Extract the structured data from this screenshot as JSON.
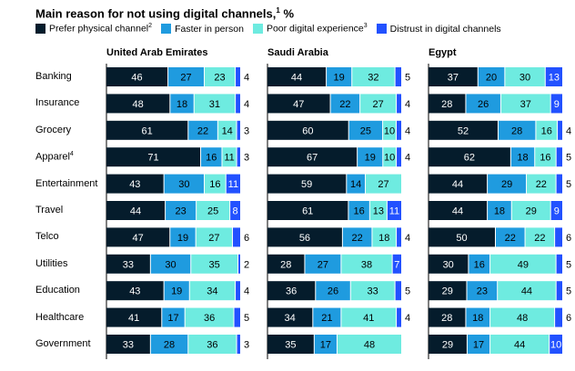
{
  "title": "Main reason for not using digital channels,",
  "title_note": "1",
  "title_suffix": " %",
  "colors": {
    "prefer_physical": "#051c2c",
    "faster_in_person": "#1f9bdf",
    "poor_digital": "#6eebe0",
    "distrust": "#2251ff"
  },
  "chart_data": {
    "type": "bar",
    "stacked": true,
    "orientation": "horizontal",
    "legend": [
      {
        "key": "prefer_physical",
        "label": "Prefer physical channel",
        "note": "2"
      },
      {
        "key": "faster_in_person",
        "label": "Faster in person",
        "note": ""
      },
      {
        "key": "poor_digital",
        "label": "Poor digital experience",
        "note": "3"
      },
      {
        "key": "distrust",
        "label": "Distrust in digital channels",
        "note": ""
      }
    ],
    "categories": [
      {
        "label": "Banking",
        "note": ""
      },
      {
        "label": "Insurance",
        "note": ""
      },
      {
        "label": "Grocery",
        "note": ""
      },
      {
        "label": "Apparel",
        "note": "4"
      },
      {
        "label": "Entertainment",
        "note": ""
      },
      {
        "label": "Travel",
        "note": ""
      },
      {
        "label": "Telco",
        "note": ""
      },
      {
        "label": "Utilities",
        "note": ""
      },
      {
        "label": "Education",
        "note": ""
      },
      {
        "label": "Healthcare",
        "note": ""
      },
      {
        "label": "Government",
        "note": ""
      }
    ],
    "panels": [
      {
        "name": "United Arab Emirates",
        "values": [
          [
            46,
            27,
            23,
            4
          ],
          [
            48,
            18,
            31,
            4
          ],
          [
            61,
            22,
            14,
            3
          ],
          [
            71,
            16,
            11,
            3
          ],
          [
            43,
            30,
            16,
            11
          ],
          [
            44,
            23,
            25,
            8
          ],
          [
            47,
            19,
            27,
            6
          ],
          [
            33,
            30,
            35,
            2
          ],
          [
            43,
            19,
            34,
            4
          ],
          [
            41,
            17,
            36,
            5
          ],
          [
            33,
            28,
            36,
            3
          ]
        ]
      },
      {
        "name": "Saudi Arabia",
        "values": [
          [
            44,
            19,
            32,
            5
          ],
          [
            47,
            22,
            27,
            4
          ],
          [
            60,
            25,
            10,
            4
          ],
          [
            67,
            19,
            10,
            4
          ],
          [
            59,
            14,
            27,
            0
          ],
          [
            61,
            16,
            13,
            11
          ],
          [
            56,
            22,
            18,
            4
          ],
          [
            28,
            27,
            38,
            7
          ],
          [
            36,
            26,
            33,
            5
          ],
          [
            34,
            21,
            41,
            4
          ],
          [
            35,
            17,
            48,
            0
          ]
        ]
      },
      {
        "name": "Egypt",
        "values": [
          [
            37,
            20,
            30,
            13
          ],
          [
            28,
            26,
            37,
            9
          ],
          [
            52,
            28,
            16,
            4
          ],
          [
            62,
            18,
            16,
            5
          ],
          [
            44,
            29,
            22,
            5
          ],
          [
            44,
            18,
            29,
            9
          ],
          [
            50,
            22,
            22,
            6
          ],
          [
            30,
            16,
            49,
            5
          ],
          [
            29,
            23,
            44,
            5
          ],
          [
            28,
            18,
            48,
            6
          ],
          [
            29,
            17,
            44,
            10
          ]
        ]
      }
    ]
  }
}
